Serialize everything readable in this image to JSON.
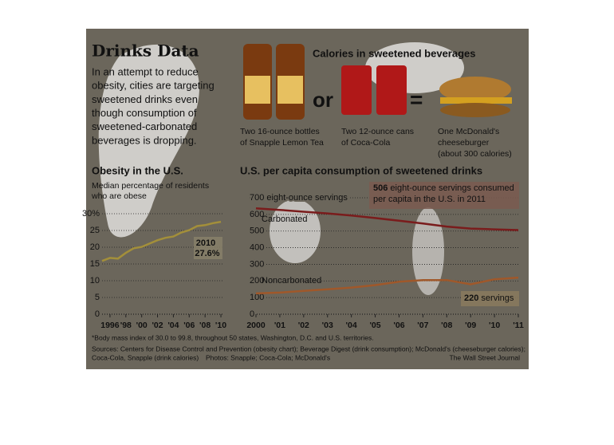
{
  "header": {
    "title": "Drinks Data",
    "text": [
      "In an attempt to reduce",
      "obesity, cities are targeting",
      "sweetened drinks even",
      "though consumption of",
      "sweetened-carbonated",
      "beverages is dropping."
    ]
  },
  "calories": {
    "title": "Calories in sweetened beverages",
    "items": [
      {
        "label": [
          "Two 16-ounce bottles",
          "of Snapple Lemon Tea"
        ]
      },
      {
        "label": [
          "Two 12-ounce cans",
          "of Coca-Cola"
        ]
      },
      {
        "label": [
          "One McDonald's",
          "cheeseburger",
          "(about 300 calories)"
        ]
      }
    ],
    "or": "or",
    "equals": "="
  },
  "chart_data": [
    {
      "type": "line",
      "title": "Obesity in the U.S.",
      "subtitle": [
        "Median percentage of residents",
        "who are obese"
      ],
      "x": [
        1995,
        1996,
        1997,
        1998,
        1999,
        2000,
        2001,
        2002,
        2003,
        2004,
        2005,
        2006,
        2007,
        2008,
        2009,
        2010
      ],
      "series": [
        {
          "name": null,
          "color": "#a38f3a",
          "values": [
            15.9,
            16.8,
            16.6,
            18.3,
            19.7,
            20.1,
            21.1,
            22.1,
            22.8,
            23.2,
            24.4,
            25.1,
            26.3,
            26.6,
            27.2,
            27.6
          ],
          "value_labels": [
            null,
            null,
            null,
            null,
            null,
            null,
            null,
            null,
            null,
            null,
            null,
            null,
            null,
            null,
            null,
            "27.6%"
          ]
        }
      ],
      "annotation": "2010",
      "xlim": [
        1995,
        2010.4
      ],
      "ylim": [
        0,
        30
      ],
      "xticks": [
        1996,
        {
          "value": 1998,
          "label": "'98"
        },
        {
          "value": 2000,
          "label": "'00"
        },
        {
          "value": 2002,
          "label": "'02"
        },
        {
          "value": 2004,
          "label": "'04"
        },
        {
          "value": 2006,
          "label": "'06"
        },
        {
          "value": 2008,
          "label": "'08"
        },
        {
          "value": 2010,
          "label": "'10"
        }
      ],
      "yticks": [
        0,
        5,
        10,
        15,
        20,
        25,
        {
          "value": 30,
          "label": "30%"
        }
      ],
      "grid": true
    },
    {
      "type": "line",
      "title": "U.S. per capita consumption of sweetened drinks",
      "x": [
        2000,
        2001,
        2002,
        2003,
        2004,
        2005,
        2006,
        2007,
        2008,
        2009,
        2010,
        2011
      ],
      "series": [
        {
          "name": "Carbonated",
          "color": "#7a1c1c",
          "values": [
            636,
            627,
            616,
            606,
            593,
            578,
            562,
            545,
            527,
            515,
            510,
            506
          ]
        },
        {
          "name": "Noncarbonated",
          "color": "#a0582a",
          "values": [
            125,
            130,
            140,
            150,
            160,
            175,
            195,
            205,
            205,
            180,
            210,
            220
          ]
        }
      ],
      "annotations": [
        " eight-ounce servings consumed",
        "per capita in the U.S. in 2011",
        " servings"
      ],
      "xlim": [
        2000,
        2011
      ],
      "ylim": [
        0,
        700
      ],
      "xticks": [
        2000,
        {
          "value": 2001,
          "label": "'01"
        },
        {
          "value": 2002,
          "label": "'02"
        },
        {
          "value": 2003,
          "label": "'03"
        },
        {
          "value": 2004,
          "label": "'04"
        },
        {
          "value": 2005,
          "label": "'05"
        },
        {
          "value": 2006,
          "label": "'06"
        },
        {
          "value": 2007,
          "label": "'07"
        },
        {
          "value": 2008,
          "label": "'08"
        },
        {
          "value": 2009,
          "label": "'09"
        },
        {
          "value": 2010,
          "label": "'10"
        },
        {
          "value": 2011,
          "label": "'11"
        }
      ],
      "yticks": [
        0,
        100,
        200,
        300,
        400,
        500,
        600,
        {
          "value": 700,
          "label": "700 eight-ounce servings"
        }
      ],
      "grid": true
    }
  ],
  "footer": {
    "note": "*Body mass index of 30.0 to 99.8, throughout 50 states, Washington, D.C. and U.S. territories.",
    "sources": [
      "Sources: Centers for Disease Control and Prevention (obesity chart); Beverage Digest (drink consumption); McDonald's (cheeseburger calories);",
      "Coca-Cola, Snapple (drink calories)"
    ],
    "photos": "Photos: Snapple; Coca-Cola; McDonald's",
    "credit": "The Wall Street Journal"
  }
}
